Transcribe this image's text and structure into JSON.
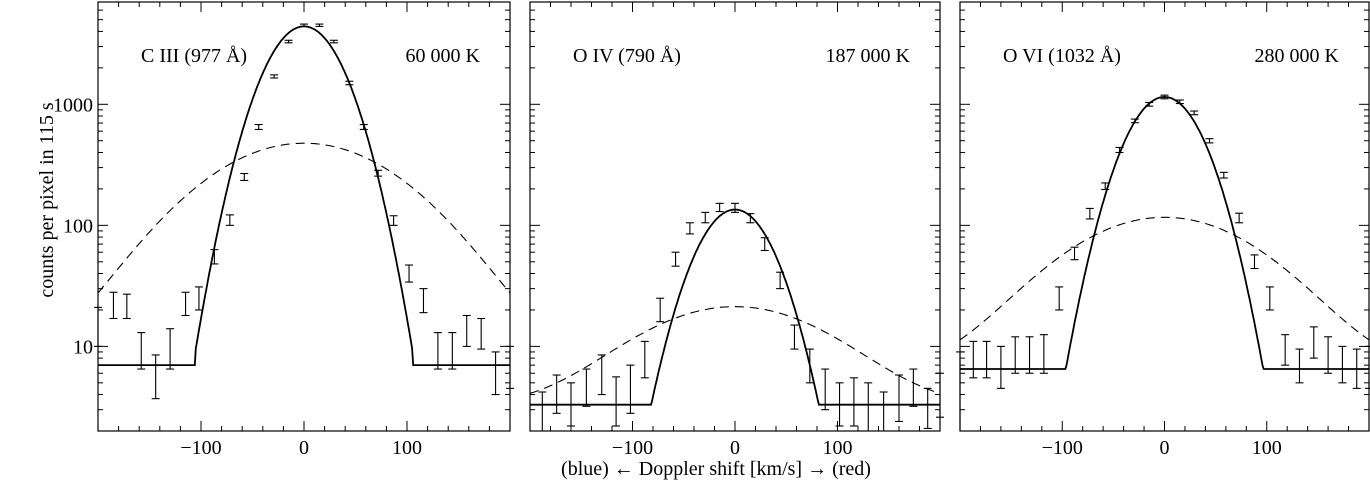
{
  "figure": {
    "ylabel": "counts per pixel  in 115 s",
    "xlabel": "(blue)  ←  Doppler shift  [km/s]  →  (red)"
  },
  "chart_data": [
    {
      "type": "line",
      "title": "C III (977 Å)",
      "temperature_label": "60 000 K",
      "xlim": [
        -200,
        200
      ],
      "ylim": [
        2,
        7000
      ],
      "yscale": "log",
      "x_ticks": [
        -100,
        0,
        100
      ],
      "y_ticks": [
        10,
        100,
        1000
      ],
      "fit": {
        "peak": 4400,
        "sigma": 30,
        "background": 7,
        "baseline_cut": 105
      },
      "gaussian_dashed": {
        "peak": 470,
        "sigma": 80,
        "background": 7
      },
      "points": [
        {
          "x": -200,
          "y": 15,
          "lo": 10,
          "hi": 21
        },
        {
          "x": -185,
          "y": 22,
          "lo": 17,
          "hi": 28
        },
        {
          "x": -172,
          "y": 22,
          "lo": 17,
          "hi": 27
        },
        {
          "x": -158,
          "y": 9.5,
          "lo": 6.5,
          "hi": 13
        },
        {
          "x": -144,
          "y": 5.8,
          "lo": 3.7,
          "hi": 8.5
        },
        {
          "x": -130,
          "y": 9.5,
          "lo": 6.5,
          "hi": 14
        },
        {
          "x": -115,
          "y": 23,
          "lo": 18,
          "hi": 28
        },
        {
          "x": -102,
          "y": 25,
          "lo": 20,
          "hi": 31
        },
        {
          "x": -87,
          "y": 55,
          "lo": 48,
          "hi": 63
        },
        {
          "x": -72,
          "y": 110,
          "lo": 100,
          "hi": 122
        },
        {
          "x": -58,
          "y": 250,
          "lo": 235,
          "hi": 268
        },
        {
          "x": -44,
          "y": 650,
          "lo": 620,
          "hi": 680
        },
        {
          "x": -29,
          "y": 1700,
          "lo": 1650,
          "hi": 1750
        },
        {
          "x": -15,
          "y": 3300,
          "lo": 3220,
          "hi": 3380
        },
        {
          "x": 0,
          "y": 4500,
          "lo": 4400,
          "hi": 4600
        },
        {
          "x": 15,
          "y": 4500,
          "lo": 4400,
          "hi": 4600
        },
        {
          "x": 29,
          "y": 3300,
          "lo": 3220,
          "hi": 3380
        },
        {
          "x": 44,
          "y": 1500,
          "lo": 1450,
          "hi": 1550
        },
        {
          "x": 58,
          "y": 650,
          "lo": 620,
          "hi": 680
        },
        {
          "x": 72,
          "y": 270,
          "lo": 255,
          "hi": 285
        },
        {
          "x": 87,
          "y": 110,
          "lo": 100,
          "hi": 120
        },
        {
          "x": 102,
          "y": 40,
          "lo": 34,
          "hi": 47
        },
        {
          "x": 116,
          "y": 24,
          "lo": 19,
          "hi": 30
        },
        {
          "x": 130,
          "y": 9.5,
          "lo": 6.5,
          "hi": 13
        },
        {
          "x": 144,
          "y": 9.5,
          "lo": 6.5,
          "hi": 13
        },
        {
          "x": 158,
          "y": 14,
          "lo": 10,
          "hi": 18
        },
        {
          "x": 172,
          "y": 13,
          "lo": 9.5,
          "hi": 17
        },
        {
          "x": 186,
          "y": 6.2,
          "lo": 4,
          "hi": 9
        },
        {
          "x": 200,
          "y": 7,
          "lo": 4.5,
          "hi": 10
        }
      ]
    },
    {
      "type": "line",
      "title": "O IV (790 Å)",
      "temperature_label": "187 000 K",
      "xlim": [
        -200,
        200
      ],
      "ylim": [
        2,
        7000
      ],
      "yscale": "log",
      "x_ticks": [
        -100,
        0,
        100
      ],
      "y_ticks": [
        10,
        100,
        1000
      ],
      "fit": {
        "peak": 135,
        "sigma": 30,
        "background": 3.3,
        "baseline_cut": 105
      },
      "gaussian_dashed": {
        "peak": 18,
        "sigma": 80,
        "background": 3.3
      },
      "points": [
        {
          "x": -188,
          "y": 3.0,
          "lo": 2,
          "hi": 4.2
        },
        {
          "x": -174,
          "y": 4.2,
          "lo": 2.8,
          "hi": 5.8
        },
        {
          "x": -160,
          "y": 3.5,
          "lo": 2.2,
          "hi": 5.0
        },
        {
          "x": -145,
          "y": 4.8,
          "lo": 3.2,
          "hi": 6.5
        },
        {
          "x": -130,
          "y": 6.0,
          "lo": 4.0,
          "hi": 8.5
        },
        {
          "x": -116,
          "y": 3.8,
          "lo": 2.2,
          "hi": 5.6
        },
        {
          "x": -102,
          "y": 4.5,
          "lo": 2.8,
          "hi": 7.0
        },
        {
          "x": -88,
          "y": 8.0,
          "lo": 5.5,
          "hi": 11
        },
        {
          "x": -73,
          "y": 20,
          "lo": 16,
          "hi": 25
        },
        {
          "x": -58,
          "y": 52,
          "lo": 46,
          "hi": 60
        },
        {
          "x": -44,
          "y": 95,
          "lo": 85,
          "hi": 105
        },
        {
          "x": -29,
          "y": 115,
          "lo": 105,
          "hi": 128
        },
        {
          "x": -15,
          "y": 140,
          "lo": 130,
          "hi": 152
        },
        {
          "x": 0,
          "y": 140,
          "lo": 128,
          "hi": 152
        },
        {
          "x": 15,
          "y": 115,
          "lo": 105,
          "hi": 125
        },
        {
          "x": 29,
          "y": 70,
          "lo": 62,
          "hi": 79
        },
        {
          "x": 44,
          "y": 35,
          "lo": 30,
          "hi": 41
        },
        {
          "x": 58,
          "y": 12,
          "lo": 9.5,
          "hi": 15
        },
        {
          "x": 73,
          "y": 7.0,
          "lo": 5.0,
          "hi": 9.5
        },
        {
          "x": 88,
          "y": 4.5,
          "lo": 3.0,
          "hi": 6.5
        },
        {
          "x": 102,
          "y": 3.5,
          "lo": 2.2,
          "hi": 5.0
        },
        {
          "x": 116,
          "y": 3.5,
          "lo": 2.2,
          "hi": 5.5
        },
        {
          "x": 130,
          "y": 3.0,
          "lo": 2,
          "hi": 5.0
        },
        {
          "x": 145,
          "y": 2.6,
          "lo": 2,
          "hi": 4.2
        },
        {
          "x": 160,
          "y": 3.8,
          "lo": 2.4,
          "hi": 5.8
        },
        {
          "x": 174,
          "y": 4.8,
          "lo": 3.2,
          "hi": 6.5
        },
        {
          "x": 188,
          "y": 3.2,
          "lo": 2.1,
          "hi": 4.5
        },
        {
          "x": 200,
          "y": 4.0,
          "lo": 2.6,
          "hi": 6.0
        }
      ]
    },
    {
      "type": "line",
      "title": "O VI (1032 Å)",
      "temperature_label": "280 000 K",
      "xlim": [
        -200,
        200
      ],
      "ylim": [
        2,
        7000
      ],
      "yscale": "log",
      "x_ticks": [
        -100,
        0,
        100
      ],
      "y_ticks": [
        10,
        100,
        1000
      ],
      "fit": {
        "peak": 1150,
        "sigma": 30,
        "background": 6.5,
        "baseline_cut": 105
      },
      "gaussian_dashed": {
        "peak": 110,
        "sigma": 80,
        "background": 6.5
      },
      "points": [
        {
          "x": -200,
          "y": 5.5,
          "lo": 2,
          "hi": 9.0
        },
        {
          "x": -187,
          "y": 8.0,
          "lo": 5.5,
          "hi": 11
        },
        {
          "x": -174,
          "y": 8.0,
          "lo": 5.5,
          "hi": 11
        },
        {
          "x": -160,
          "y": 7.0,
          "lo": 4.5,
          "hi": 10
        },
        {
          "x": -146,
          "y": 9.0,
          "lo": 6.0,
          "hi": 12
        },
        {
          "x": -132,
          "y": 8.5,
          "lo": 6.0,
          "hi": 12
        },
        {
          "x": -118,
          "y": 9.0,
          "lo": 6.0,
          "hi": 12.5
        },
        {
          "x": -103,
          "y": 25,
          "lo": 20,
          "hi": 31
        },
        {
          "x": -88,
          "y": 58,
          "lo": 52,
          "hi": 66
        },
        {
          "x": -73,
          "y": 125,
          "lo": 113,
          "hi": 138
        },
        {
          "x": -58,
          "y": 210,
          "lo": 198,
          "hi": 224
        },
        {
          "x": -44,
          "y": 420,
          "lo": 400,
          "hi": 440
        },
        {
          "x": -29,
          "y": 730,
          "lo": 705,
          "hi": 755
        },
        {
          "x": -15,
          "y": 1000,
          "lo": 965,
          "hi": 1035
        },
        {
          "x": 0,
          "y": 1150,
          "lo": 1110,
          "hi": 1190
        },
        {
          "x": 15,
          "y": 1050,
          "lo": 1015,
          "hi": 1085
        },
        {
          "x": 29,
          "y": 850,
          "lo": 820,
          "hi": 880
        },
        {
          "x": 44,
          "y": 500,
          "lo": 480,
          "hi": 520
        },
        {
          "x": 58,
          "y": 260,
          "lo": 246,
          "hi": 274
        },
        {
          "x": 73,
          "y": 115,
          "lo": 105,
          "hi": 126
        },
        {
          "x": 88,
          "y": 50,
          "lo": 44,
          "hi": 57
        },
        {
          "x": 103,
          "y": 25,
          "lo": 20,
          "hi": 31
        },
        {
          "x": 118,
          "y": 9.5,
          "lo": 7.0,
          "hi": 12.5
        },
        {
          "x": 132,
          "y": 7.0,
          "lo": 5.0,
          "hi": 9.5
        },
        {
          "x": 146,
          "y": 11,
          "lo": 8.0,
          "hi": 14.5
        },
        {
          "x": 160,
          "y": 9.0,
          "lo": 6.0,
          "hi": 12
        },
        {
          "x": 174,
          "y": 7.0,
          "lo": 5.0,
          "hi": 10
        },
        {
          "x": 188,
          "y": 6.5,
          "lo": 4.5,
          "hi": 9.5
        },
        {
          "x": 200,
          "y": 7.0,
          "lo": 4.5,
          "hi": 10
        }
      ]
    }
  ]
}
